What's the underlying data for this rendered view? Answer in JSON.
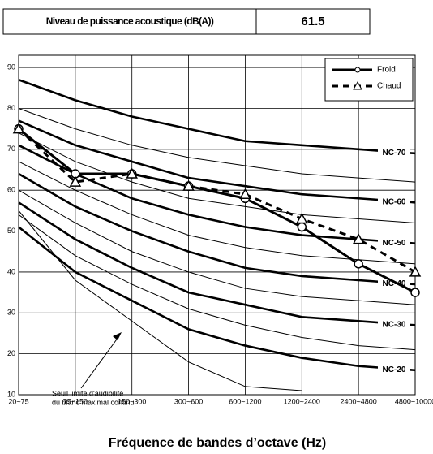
{
  "header": {
    "label": "Niveau de puissance acoustique (dB(A))",
    "value": 61.5
  },
  "chart_data": {
    "type": "line",
    "categories": [
      "20~75",
      "75~150",
      "150~300",
      "300~600",
      "600~1200",
      "1200~2400",
      "2400~4800",
      "4800~10000"
    ],
    "x_label": "Fréquence de bandes d’octave (Hz)",
    "ylim": [
      10,
      93
    ],
    "yticks": [
      10,
      20,
      30,
      40,
      50,
      60,
      70,
      80,
      90
    ],
    "grid": true,
    "legend_position": "upper right",
    "series": [
      {
        "name": "Froid",
        "color": "#000000",
        "style": "solid",
        "marker": "circle",
        "values": [
          75,
          64,
          64,
          61,
          58,
          51,
          42,
          35
        ]
      },
      {
        "name": "Chaud",
        "color": "#000000",
        "style": "dashed",
        "marker": "triangle",
        "values": [
          75,
          62,
          64,
          61,
          59,
          53,
          48,
          40
        ]
      }
    ],
    "nc_curves": [
      {
        "label": "NC-70",
        "values": [
          87,
          82,
          78,
          75,
          72,
          71,
          70,
          69
        ]
      },
      {
        "values": [
          80,
          75,
          71,
          68,
          66,
          64,
          63,
          62
        ]
      },
      {
        "label": "NC-60",
        "values": [
          77,
          71,
          67,
          63,
          61,
          59,
          58,
          57
        ]
      },
      {
        "values": [
          74,
          67,
          62,
          58,
          56,
          54,
          53,
          52
        ]
      },
      {
        "label": "NC-50",
        "values": [
          71,
          64,
          58,
          54,
          51,
          49,
          48,
          47
        ]
      },
      {
        "values": [
          67,
          60,
          54,
          49,
          46,
          44,
          43,
          42
        ]
      },
      {
        "label": "NC-40",
        "values": [
          64,
          56,
          50,
          45,
          41,
          39,
          38,
          37
        ]
      },
      {
        "values": [
          60,
          52,
          45,
          40,
          36,
          34,
          33,
          32
        ]
      },
      {
        "label": "NC-30",
        "values": [
          57,
          48,
          41,
          35,
          32,
          29,
          28,
          27
        ]
      },
      {
        "values": [
          54,
          44,
          37,
          31,
          27,
          24,
          22,
          21
        ]
      },
      {
        "label": "NC-20",
        "values": [
          51,
          40,
          33,
          26,
          22,
          19,
          17,
          16
        ]
      },
      {
        "values": [
          55,
          38,
          28,
          18,
          12,
          11,
          null,
          null
        ]
      }
    ],
    "annotation": [
      "Seuil limite d'audibilité",
      "du blanc maximal continu"
    ]
  }
}
